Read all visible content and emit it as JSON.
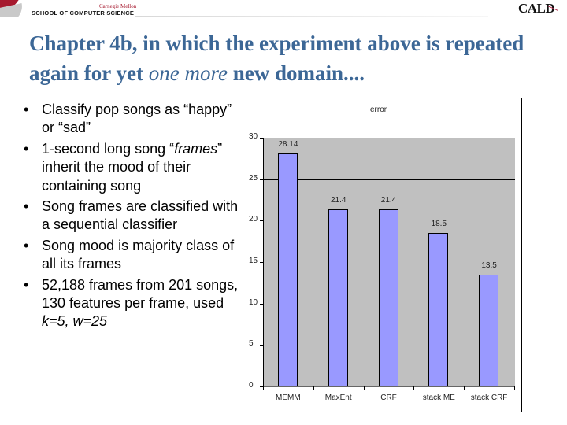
{
  "header": {
    "university": "Carnegie Mellon",
    "school": "SCHOOL OF COMPUTER SCIENCE",
    "group_logo": "CALD"
  },
  "slide": {
    "title_part1": "Chapter 4b, in which the experiment above is repeated again for yet ",
    "title_emphasis": "one more",
    "title_part2": " new domain....",
    "bullets": [
      {
        "text_before": "Classify pop songs as “happy” or “sad”",
        "emph": "",
        "text_after": ""
      },
      {
        "text_before": "1-second long song “",
        "emph": "frames",
        "text_after": "” inherit the mood of their containing song"
      },
      {
        "text_before": "Song frames are classified with a sequential classifier",
        "emph": "",
        "text_after": ""
      },
      {
        "text_before": "Song mood is majority class of all its frames",
        "emph": "",
        "text_after": ""
      },
      {
        "text_before": "52,188 frames from 201 songs, 130 features per frame, used ",
        "emph": "k=5, w=25",
        "text_after": ""
      }
    ],
    "bullet_glyph": "•"
  },
  "chart_data": {
    "type": "bar",
    "title": "error",
    "xlabel": "",
    "ylabel": "",
    "categories": [
      "MEMM",
      "MaxEnt",
      "CRF",
      "stack ME",
      "stack CRF"
    ],
    "values": [
      28.14,
      21.4,
      21.4,
      18.5,
      13.5
    ],
    "value_labels": [
      "28.14",
      "21.4",
      "21.4",
      "18.5",
      "13.5"
    ],
    "ylim": [
      0,
      30
    ],
    "yticks": [
      "30",
      "25",
      "20",
      "15",
      "10",
      "5",
      "0"
    ],
    "grid": "single gridline at 25",
    "legend": "none",
    "colors": {
      "bar": "#9999ff",
      "plot_background": "#c0c0c0",
      "bar_border": "#000000"
    }
  },
  "colors": {
    "title": "#3c6796",
    "brand_red": "#a6192e"
  }
}
